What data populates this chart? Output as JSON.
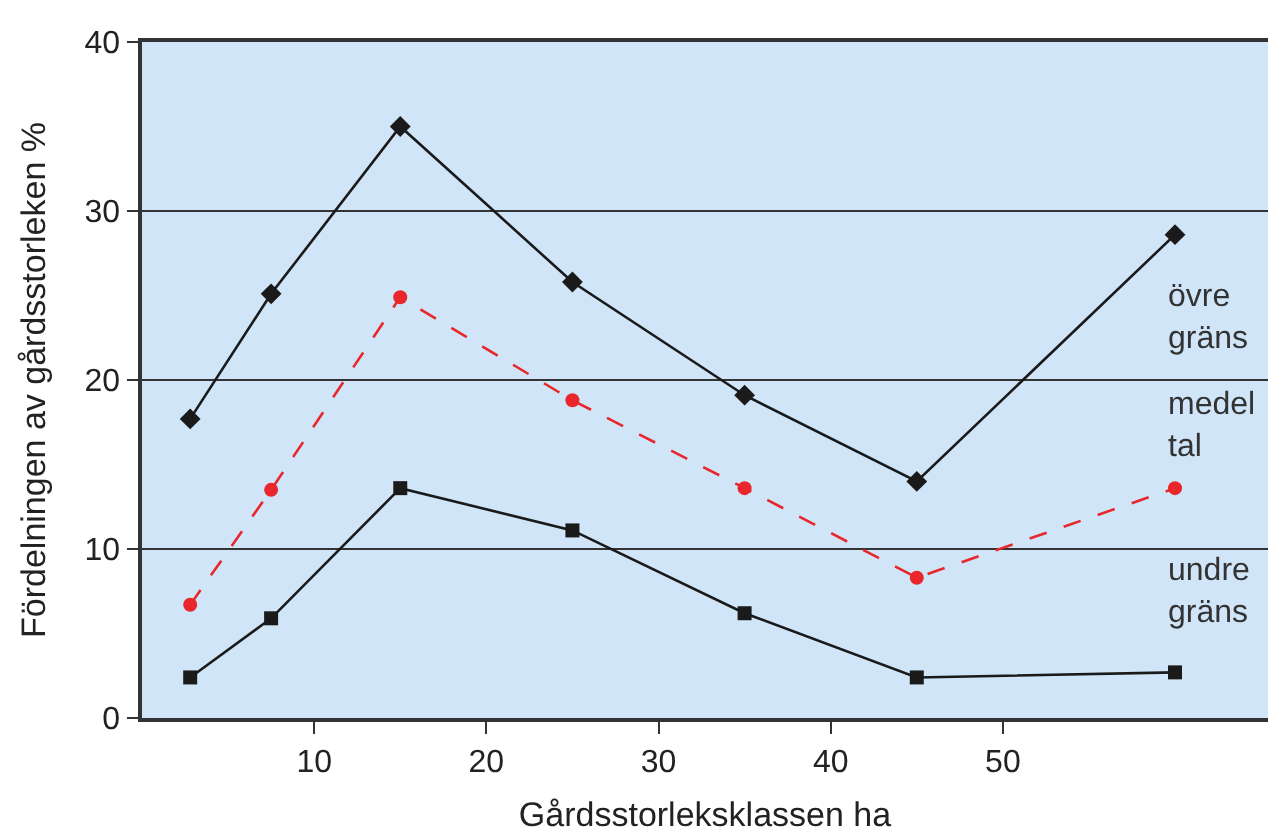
{
  "chart_data": {
    "type": "line",
    "xlabel": "Gårdsstorleksklassen ha",
    "ylabel": "Fördelningen av gårdsstorleken %",
    "x": [
      2.8,
      7.5,
      15,
      25,
      35,
      45,
      60
    ],
    "series": [
      {
        "name": "övre\ngräns",
        "color": "#1a1a1a",
        "marker": "diamond",
        "line_style": "solid",
        "values": [
          17.7,
          25.1,
          35.0,
          25.8,
          19.1,
          14.0,
          28.6
        ]
      },
      {
        "name": "medel\ntal",
        "color": "#e8262b",
        "marker": "circle",
        "line_style": "dashed",
        "values": [
          6.7,
          13.5,
          24.9,
          18.8,
          13.6,
          8.3,
          13.6
        ]
      },
      {
        "name": "undre\ngräns",
        "color": "#1a1a1a",
        "marker": "square",
        "line_style": "solid",
        "values": [
          2.4,
          5.9,
          13.6,
          11.1,
          6.2,
          2.4,
          2.7
        ]
      }
    ],
    "xlim": [
      0,
      65.4
    ],
    "ylim": [
      0,
      40
    ],
    "xticks": [
      10,
      20,
      30,
      40,
      50
    ],
    "yticks": [
      0,
      10,
      20,
      30,
      40
    ],
    "grid": "y",
    "legend": false
  }
}
